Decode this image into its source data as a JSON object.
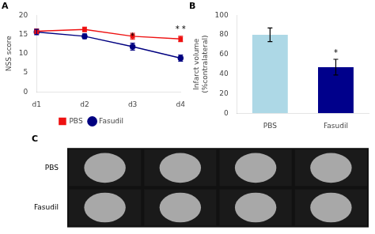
{
  "chart_data": [
    {
      "type": "line",
      "title": "A",
      "categories": [
        "d1",
        "d2",
        "d3",
        "d4"
      ],
      "series": [
        {
          "name": "PBS",
          "color": "#ee1111",
          "marker": "square",
          "values": [
            15.8,
            16.3,
            14.5,
            13.8
          ],
          "errors": [
            0.6,
            0.6,
            0.8,
            0.7
          ]
        },
        {
          "name": "Fasudil",
          "color": "#000080",
          "marker": "circle",
          "values": [
            15.6,
            14.5,
            11.8,
            8.8
          ],
          "errors": [
            0.7,
            0.6,
            0.9,
            0.8
          ]
        }
      ],
      "ylabel": "NSS score",
      "ylim": [
        0,
        20
      ],
      "yticks": [
        0,
        5,
        10,
        15,
        20
      ],
      "grid": false,
      "legend": "bottom",
      "annotations": [
        {
          "text": "*",
          "category": "d3",
          "series": "Fasudil"
        },
        {
          "text": "* *",
          "category": "d4",
          "series": "PBS"
        }
      ]
    },
    {
      "type": "bar",
      "title": "B",
      "categories": [
        "PBS",
        "Fasudil"
      ],
      "values": [
        80,
        47
      ],
      "errors": [
        7,
        8
      ],
      "colors": [
        "#add8e6",
        "#00008b"
      ],
      "ylabel": "Infarct volume\n(%contralateral)",
      "ylim": [
        0,
        100
      ],
      "yticks": [
        0,
        20,
        40,
        60,
        80,
        100
      ],
      "grid": false,
      "annotations": [
        {
          "text": "*",
          "category": "Fasudil"
        }
      ]
    },
    {
      "type": "image",
      "title": "C",
      "categories": [
        "PBS",
        "Fasudil"
      ],
      "tick_labels": "y"
    }
  ]
}
